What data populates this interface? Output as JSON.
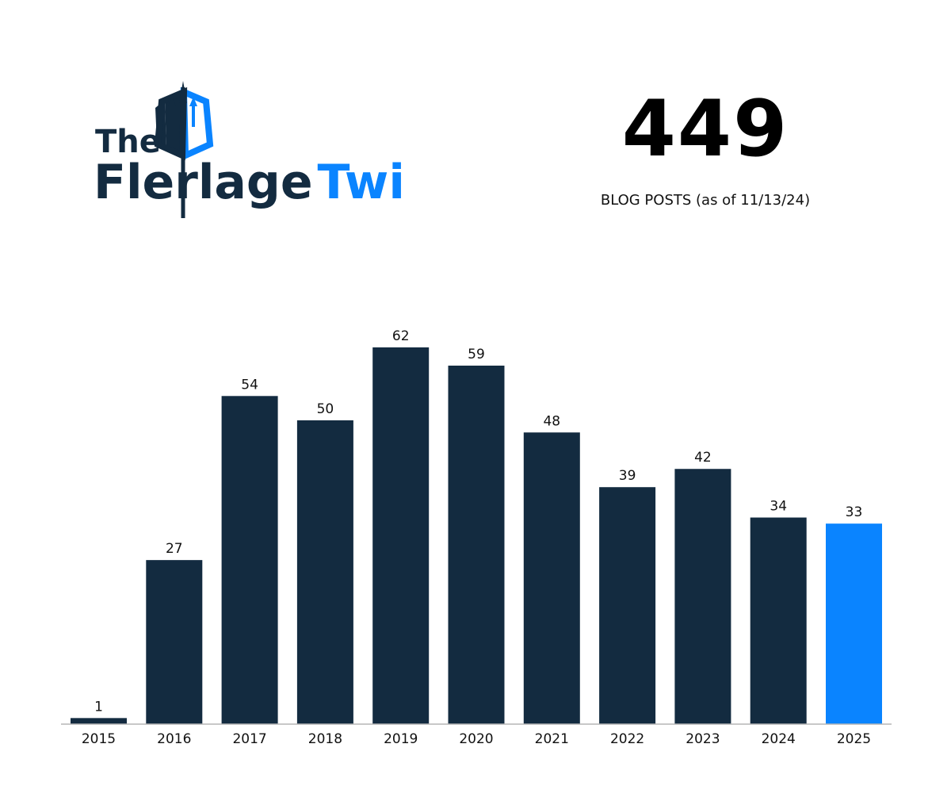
{
  "logo": {
    "line1": "The",
    "word_part1": "Flerlage",
    "word_part2": "Twins",
    "dark_color": "#132b40",
    "accent_color": "#0a84ff"
  },
  "stat": {
    "value": "449",
    "caption": "BLOG POSTS (as of 11/13/24)"
  },
  "chart_data": {
    "type": "bar",
    "categories": [
      "2015",
      "2016",
      "2017",
      "2018",
      "2019",
      "2020",
      "2021",
      "2022",
      "2023",
      "2024",
      "2025"
    ],
    "values": [
      1,
      27,
      54,
      50,
      62,
      59,
      48,
      39,
      42,
      34,
      33
    ],
    "bar_color": "#132b40",
    "highlight_color": "#0a84ff",
    "highlight_categories": [
      "2025"
    ],
    "data_labels": true,
    "grid": false,
    "ylim": [
      0,
      62
    ]
  }
}
